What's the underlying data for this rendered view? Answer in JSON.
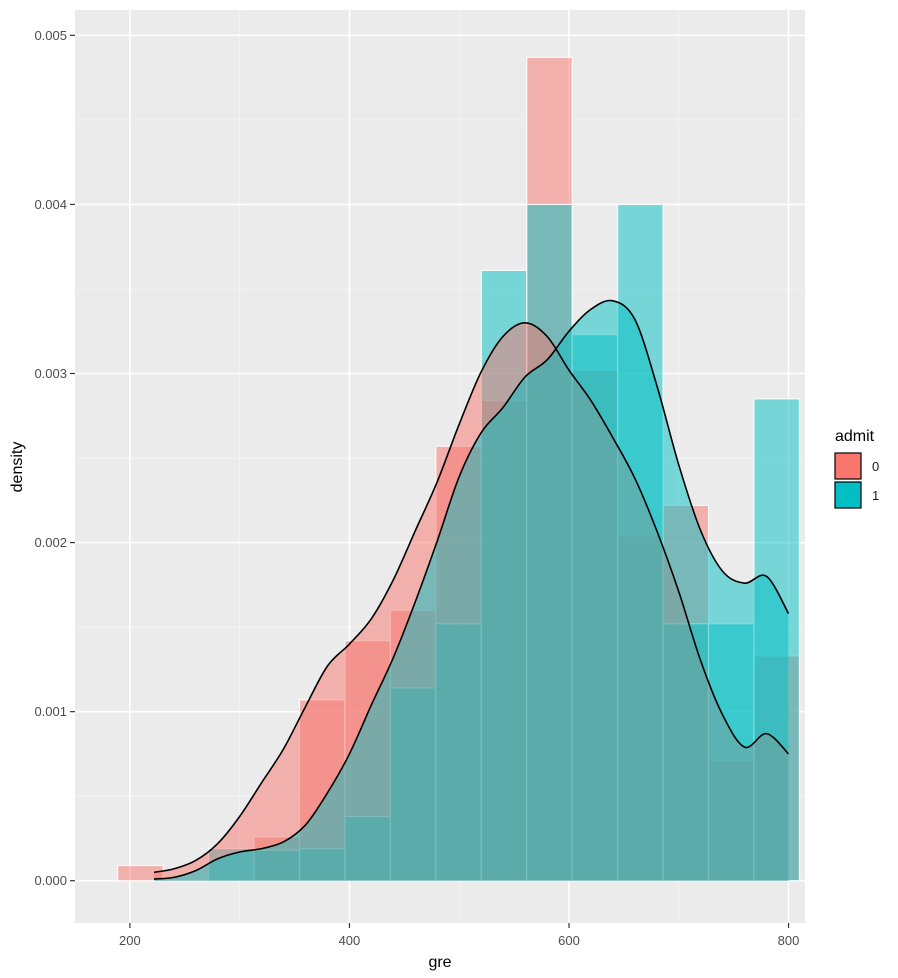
{
  "chart_data": {
    "type": "histogram",
    "xlabel": "gre",
    "ylabel": "density",
    "xlim": [
      150,
      815
    ],
    "ylim": [
      -0.00025,
      0.00515
    ],
    "x_ticks": [
      200,
      400,
      600,
      800
    ],
    "x_tick_labels": [
      "200",
      "400",
      "600",
      "800"
    ],
    "y_ticks": [
      0,
      0.001,
      0.002,
      0.003,
      0.004,
      0.005
    ],
    "y_tick_labels": [
      "0.000",
      "0.001",
      "0.002",
      "0.003",
      "0.004",
      "0.005"
    ],
    "bin_width": 41.4,
    "bin_starts": [
      188.9,
      230.3,
      271.7,
      313.1,
      354.5,
      395.9,
      437.3,
      478.7,
      520.1,
      561.5,
      602.9,
      644.3,
      685.7,
      727.1,
      768.5
    ],
    "legend": {
      "title": "admit",
      "position": "right"
    },
    "series": [
      {
        "name": "0",
        "color": "#F8766D",
        "histogram": [
          9e-05,
          0,
          0,
          0.00026,
          0.00107,
          0.00142,
          0.0016,
          0.00257,
          0.00284,
          0.00487,
          0.00302,
          0.00204,
          0.00222,
          0.00071,
          0.00133
        ],
        "density_curve": {
          "x": [
            222,
            240,
            260,
            280,
            300,
            320,
            340,
            360,
            380,
            400,
            420,
            440,
            460,
            480,
            500,
            520,
            540,
            560,
            580,
            600,
            620,
            640,
            660,
            680,
            700,
            720,
            740,
            760,
            780,
            800
          ],
          "y": [
            5e-05,
            7e-05,
            0.00012,
            0.00022,
            0.00038,
            0.00058,
            0.00078,
            0.00103,
            0.00127,
            0.0014,
            0.00155,
            0.00178,
            0.00207,
            0.00236,
            0.0027,
            0.00301,
            0.00322,
            0.0033,
            0.00322,
            0.00302,
            0.00284,
            0.00262,
            0.00238,
            0.00207,
            0.00171,
            0.0013,
            0.00098,
            0.00079,
            0.00087,
            0.00075
          ]
        }
      },
      {
        "name": "1",
        "color": "#00BFC4",
        "histogram": [
          0,
          0,
          0.00019,
          0.00018,
          0.00019,
          0.00038,
          0.00114,
          0.00152,
          0.00361,
          0.004,
          0.00323,
          0.004,
          0.00152,
          0.00152,
          0.00285
        ],
        "density_curve": {
          "x": [
            222,
            240,
            260,
            280,
            300,
            320,
            340,
            360,
            380,
            400,
            420,
            440,
            460,
            480,
            500,
            520,
            540,
            560,
            580,
            600,
            620,
            640,
            660,
            680,
            700,
            720,
            740,
            760,
            780,
            800
          ],
          "y": [
            1e-05,
            2e-05,
            6e-05,
            0.00013,
            0.00017,
            0.00019,
            0.00023,
            0.00033,
            0.00052,
            0.00075,
            0.00104,
            0.00132,
            0.00165,
            0.00201,
            0.00239,
            0.00265,
            0.0028,
            0.00298,
            0.00308,
            0.00325,
            0.00338,
            0.00343,
            0.00332,
            0.00293,
            0.00246,
            0.00207,
            0.00183,
            0.00176,
            0.0018,
            0.00158
          ]
        }
      }
    ]
  }
}
